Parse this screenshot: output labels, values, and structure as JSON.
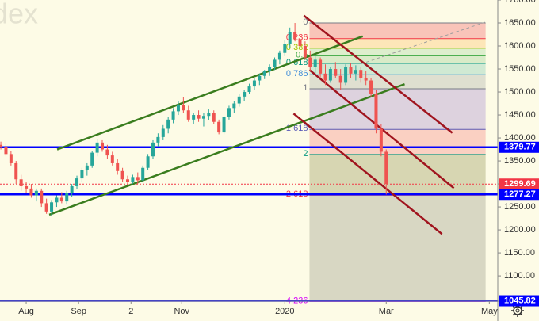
{
  "chart_data": {
    "type": "candlestick",
    "watermark": "dex",
    "xlim": [
      -15.5,
      279
    ],
    "ylim": [
      1045,
      1700
    ],
    "xticks": [
      {
        "value": 0,
        "label": "Aug"
      },
      {
        "value": 31,
        "label": "Sep"
      },
      {
        "value": 62,
        "label": "2"
      },
      {
        "value": 92,
        "label": "Nov"
      },
      {
        "value": 153,
        "label": "2020"
      },
      {
        "value": 213,
        "label": "Mar"
      },
      {
        "value": 274,
        "label": "May"
      }
    ],
    "yticks": [
      {
        "value": 1100,
        "label": "1100.00"
      },
      {
        "value": 1150,
        "label": "1150.00"
      },
      {
        "value": 1200,
        "label": "1200.00"
      },
      {
        "value": 1250,
        "label": "1250.00"
      },
      {
        "value": 1300,
        "label": "1300.00"
      },
      {
        "value": 1350,
        "label": "1350.00"
      },
      {
        "value": 1400,
        "label": "1400.00"
      },
      {
        "value": 1450,
        "label": "1450.00"
      },
      {
        "value": 1500,
        "label": "1500.00"
      },
      {
        "value": 1550,
        "label": "1550.00"
      },
      {
        "value": 1600,
        "label": "1600.00"
      },
      {
        "value": 1650,
        "label": "1650.00"
      },
      {
        "value": 1700,
        "label": "1700.00"
      }
    ],
    "up_color": "#26a69a",
    "down_color": "#ef5350",
    "x": [
      -15,
      -12,
      -9,
      -6,
      -3,
      0,
      3,
      6,
      9,
      12,
      15,
      18,
      21,
      24,
      27,
      30,
      33,
      36,
      39,
      42,
      45,
      48,
      51,
      54,
      57,
      60,
      63,
      66,
      69,
      72,
      75,
      78,
      81,
      84,
      87,
      90,
      93,
      96,
      99,
      102,
      105,
      108,
      111,
      114,
      117,
      120,
      123,
      126,
      129,
      132,
      135,
      138,
      141,
      144,
      147,
      150,
      153,
      156,
      159,
      162,
      165,
      168,
      171,
      174,
      177,
      180,
      183,
      186,
      189,
      192,
      195,
      198,
      201,
      204,
      207,
      210,
      213
    ],
    "open": [
      1385,
      1380,
      1365,
      1345,
      1310,
      1295,
      1290,
      1275,
      1285,
      1258,
      1240,
      1260,
      1270,
      1262,
      1280,
      1295,
      1312,
      1330,
      1340,
      1368,
      1390,
      1375,
      1362,
      1345,
      1328,
      1310,
      1305,
      1315,
      1308,
      1335,
      1360,
      1390,
      1402,
      1420,
      1440,
      1458,
      1472,
      1460,
      1440,
      1450,
      1442,
      1448,
      1455,
      1435,
      1412,
      1445,
      1465,
      1475,
      1490,
      1500,
      1512,
      1525,
      1535,
      1545,
      1555,
      1570,
      1585,
      1605,
      1630,
      1615,
      1600,
      1575,
      1555,
      1570,
      1540,
      1525,
      1550,
      1535,
      1520,
      1555,
      1540,
      1548,
      1530,
      1525,
      1495,
      1420,
      1370
    ],
    "high": [
      1392,
      1390,
      1372,
      1350,
      1320,
      1305,
      1300,
      1290,
      1290,
      1268,
      1265,
      1275,
      1282,
      1285,
      1300,
      1318,
      1335,
      1345,
      1372,
      1398,
      1395,
      1385,
      1370,
      1355,
      1335,
      1318,
      1320,
      1325,
      1340,
      1365,
      1395,
      1410,
      1428,
      1445,
      1465,
      1480,
      1488,
      1470,
      1455,
      1460,
      1455,
      1462,
      1460,
      1440,
      1448,
      1470,
      1480,
      1495,
      1505,
      1518,
      1530,
      1540,
      1548,
      1560,
      1575,
      1590,
      1612,
      1640,
      1650,
      1625,
      1610,
      1590,
      1580,
      1575,
      1560,
      1555,
      1565,
      1550,
      1560,
      1562,
      1558,
      1555,
      1545,
      1530,
      1505,
      1430,
      1375
    ],
    "low": [
      1375,
      1360,
      1340,
      1300,
      1285,
      1280,
      1270,
      1262,
      1250,
      1235,
      1230,
      1250,
      1258,
      1255,
      1272,
      1288,
      1305,
      1318,
      1335,
      1360,
      1370,
      1355,
      1340,
      1320,
      1305,
      1298,
      1300,
      1300,
      1305,
      1330,
      1355,
      1380,
      1395,
      1410,
      1432,
      1450,
      1455,
      1435,
      1430,
      1435,
      1425,
      1438,
      1430,
      1408,
      1408,
      1440,
      1455,
      1468,
      1480,
      1495,
      1505,
      1515,
      1528,
      1535,
      1548,
      1560,
      1578,
      1595,
      1610,
      1590,
      1570,
      1545,
      1540,
      1530,
      1515,
      1520,
      1530,
      1505,
      1515,
      1530,
      1525,
      1520,
      1515,
      1490,
      1410,
      1360,
      1277
    ],
    "close": [
      1380,
      1365,
      1345,
      1310,
      1295,
      1290,
      1275,
      1285,
      1258,
      1240,
      1260,
      1270,
      1262,
      1280,
      1295,
      1312,
      1330,
      1340,
      1368,
      1390,
      1375,
      1362,
      1345,
      1328,
      1310,
      1305,
      1315,
      1308,
      1335,
      1360,
      1390,
      1402,
      1420,
      1440,
      1458,
      1472,
      1460,
      1440,
      1450,
      1442,
      1448,
      1455,
      1435,
      1412,
      1445,
      1465,
      1475,
      1490,
      1500,
      1512,
      1525,
      1535,
      1545,
      1555,
      1570,
      1585,
      1605,
      1630,
      1615,
      1600,
      1575,
      1555,
      1570,
      1540,
      1525,
      1550,
      1535,
      1520,
      1555,
      1540,
      1548,
      1530,
      1525,
      1495,
      1420,
      1370,
      1300
    ],
    "trendlines": [
      {
        "color": "#3a7d1e",
        "x": [
          18.3,
          199.1
        ],
        "y": [
          1375,
          1621
        ]
      },
      {
        "color": "#3a7d1e",
        "x": [
          13.6,
          223.9
        ],
        "y": [
          1233,
          1517
        ]
      },
      {
        "color": "#a0141e",
        "x": [
          164.3,
          252.1
        ],
        "y": [
          1666,
          1411
        ]
      },
      {
        "color": "#a0141e",
        "x": [
          167.6,
          253.0
        ],
        "y": [
          1548,
          1291
        ]
      },
      {
        "color": "#a0141e",
        "x": [
          158.2,
          246.0
        ],
        "y": [
          1453,
          1191
        ]
      },
      {
        "color": "#9e9e9e",
        "dashed": true,
        "x": [
          198.1,
          271.8
        ],
        "y": [
          1561,
          1652
        ]
      }
    ],
    "fib": {
      "x": [
        167.6,
        271.8
      ],
      "levels": [
        {
          "ratio": "0",
          "price": 1650,
          "color": "#787b86",
          "fill": "rgba(242,54,69,0.28)"
        },
        {
          "ratio": "0.236",
          "price": 1616,
          "color": "#f23645",
          "fill": "rgba(255,152,0,0.2)"
        },
        {
          "ratio": "0.382",
          "price": 1595,
          "color": "#a5c400",
          "fill": "rgba(129,199,132,0.25)"
        },
        {
          "ratio": "0.5",
          "price": 1578.5,
          "color": "#4caf50",
          "fill": "rgba(76,175,80,0.2)"
        },
        {
          "ratio": "0.618",
          "price": 1562,
          "color": "#089981",
          "fill": "rgba(8,153,129,0.18)"
        },
        {
          "ratio": "0.786",
          "price": 1537.6,
          "color": "#3d8bd9",
          "fill": "rgba(120,123,134,0.22)"
        },
        {
          "ratio": "1",
          "price": 1507,
          "color": "#787b86",
          "fill": "rgba(149,117,205,0.3)"
        },
        {
          "ratio": "1.618",
          "price": 1418.6,
          "color": "#5b5bb8",
          "fill": "rgba(242,54,69,0.22)"
        },
        {
          "ratio": "2",
          "price": 1364,
          "color": "#089981",
          "fill": "rgba(128,128,60,0.3)"
        },
        {
          "ratio": "2.618",
          "price": 1275.6,
          "color": "#f23645",
          "fill": "rgba(140,140,120,0.32)"
        },
        {
          "ratio": "4.236",
          "price": 1044.3,
          "color": "#d500f9"
        }
      ]
    },
    "hlines": [
      {
        "value": 1379.77,
        "color": "#0000ff"
      },
      {
        "value": 1299.69,
        "color": "#f23645",
        "dotted": true
      },
      {
        "value": 1277.27,
        "color": "#0000ff"
      },
      {
        "value": 1045.82,
        "color": "#0000ff"
      }
    ]
  }
}
